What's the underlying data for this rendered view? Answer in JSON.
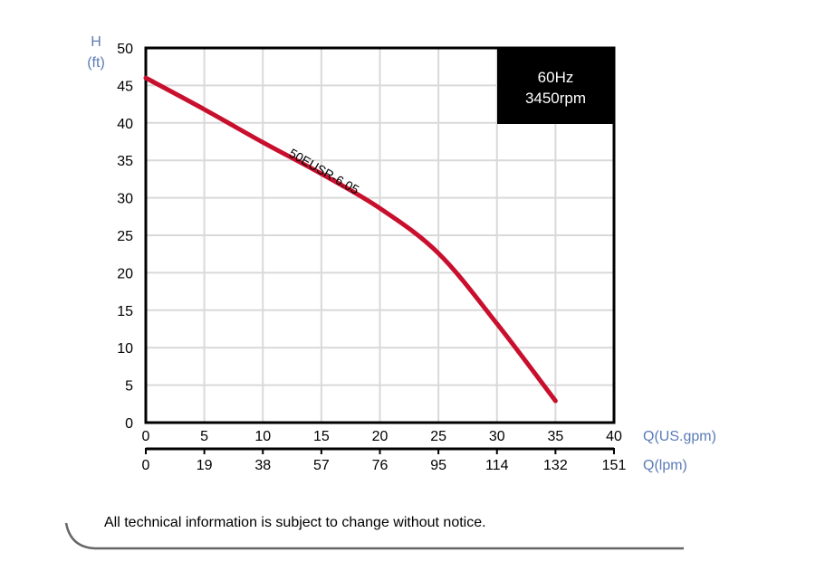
{
  "chart_data": {
    "type": "line",
    "title": "",
    "xlabel": "Q(US.gpm)",
    "xlabel_secondary": "Q(lpm)",
    "ylabel": "H",
    "ylabel_unit": "(ft)",
    "xlim": [
      0,
      40
    ],
    "ylim": [
      0,
      50
    ],
    "grid": true,
    "x_ticks": [
      0,
      5,
      10,
      15,
      20,
      25,
      30,
      35,
      40
    ],
    "x_ticks_secondary": [
      0,
      19,
      38,
      57,
      76,
      95,
      114,
      132,
      151
    ],
    "y_ticks": [
      0,
      5,
      10,
      15,
      20,
      25,
      30,
      35,
      40,
      45,
      50
    ],
    "series": [
      {
        "name": "50EUSR-6.05",
        "color": "#c8102e",
        "x": [
          0,
          5,
          10,
          15,
          20,
          25,
          30,
          35
        ],
        "values": [
          46.0,
          41.8,
          37.4,
          33.2,
          28.6,
          22.6,
          13.2,
          2.9
        ]
      }
    ],
    "annotations": [
      {
        "text": "50EUSR-6.05",
        "position": "along curve near 13-20 gpm",
        "rotation": 28
      },
      {
        "text": "60Hz\n3450rpm",
        "position": "top-right black box"
      }
    ]
  },
  "info_box": {
    "line1": "60Hz",
    "line2": "3450rpm"
  },
  "labels": {
    "y_axis_title": "H",
    "y_axis_unit": "(ft)",
    "x_axis_primary": "Q(US.gpm)",
    "x_axis_secondary": "Q(lpm)",
    "curve_label": "50EUSR-6.05"
  },
  "footer": {
    "note": "All technical information is subject to change without notice."
  },
  "colors": {
    "curve": "#c8102e",
    "axis_unit_text": "#5b7bb8",
    "grid": "#d9d9d9",
    "info_box_bg": "#000000"
  }
}
